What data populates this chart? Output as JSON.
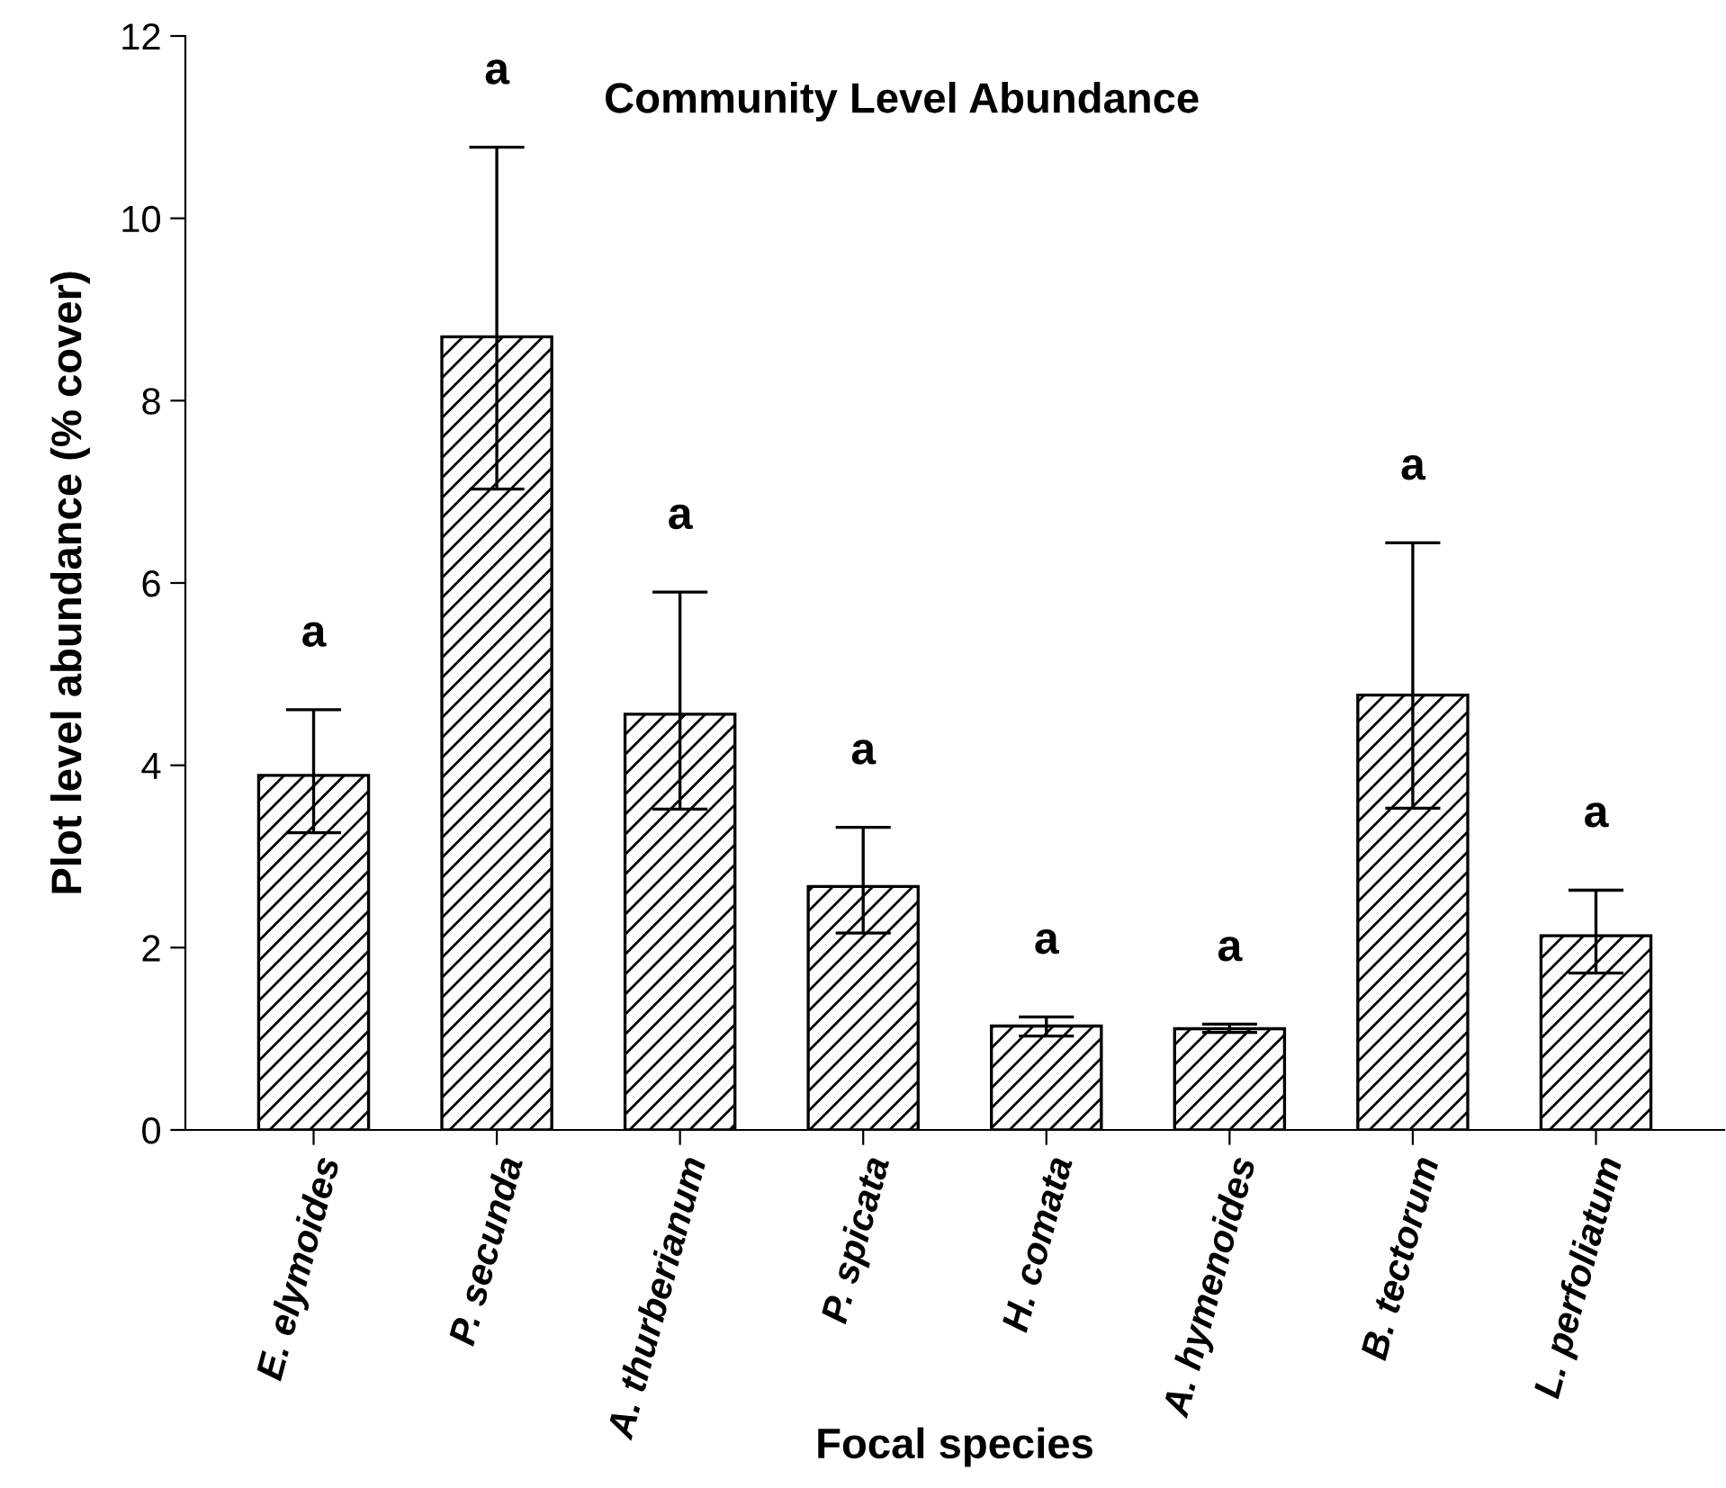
{
  "chart_data": {
    "type": "bar",
    "title": "Community Level Abundance",
    "xlabel": "Focal species",
    "ylabel": "Plot level abundance (% cover)",
    "categories": [
      "E. elymoides",
      "P. secunda",
      "A. thurberianum",
      "P. spicata",
      "H. comata",
      "A. hymenoides",
      "B. tectorum",
      "L. perfoliatum"
    ],
    "series": [
      {
        "color": "#000000",
        "values": [
          3.89,
          8.7,
          4.56,
          2.67,
          1.14,
          1.11,
          4.77,
          2.13
        ],
        "errors": [
          [
            3.26,
            4.61
          ],
          [
            7.03,
            10.78
          ],
          [
            3.52,
            5.9
          ],
          [
            2.16,
            3.32
          ],
          [
            1.03,
            1.24
          ],
          [
            1.07,
            1.16
          ],
          [
            3.53,
            6.44
          ],
          [
            1.72,
            2.63
          ]
        ]
      }
    ],
    "annotations": [
      "a",
      "a",
      "a",
      "a",
      "a",
      "a",
      "a",
      "a"
    ],
    "ylim": [
      0,
      12
    ],
    "yticks": [
      0,
      2,
      4,
      6,
      8,
      10,
      12
    ],
    "grid": false,
    "legend": false
  }
}
